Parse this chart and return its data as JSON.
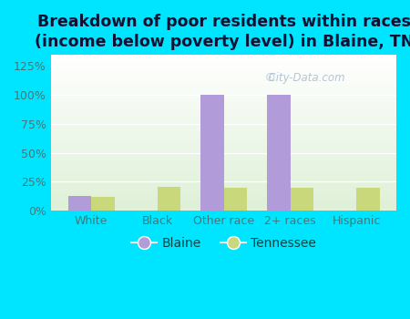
{
  "title": "Breakdown of poor residents within races\n(income below poverty level) in Blaine, TN",
  "categories": [
    "White",
    "Black",
    "Other race",
    "2+ races",
    "Hispanic"
  ],
  "blaine_values": [
    13,
    0,
    100,
    100,
    0
  ],
  "tennessee_values": [
    12,
    21,
    20,
    20,
    20
  ],
  "blaine_color": "#b19cd9",
  "tennessee_color": "#c8d87a",
  "ylim": [
    0,
    135
  ],
  "yticks": [
    0,
    25,
    50,
    75,
    100,
    125
  ],
  "ytick_labels": [
    "0%",
    "25%",
    "50%",
    "75%",
    "100%",
    "125%"
  ],
  "bg_outer": "#00e5ff",
  "bar_width": 0.35,
  "title_fontsize": 12.5,
  "legend_fontsize": 10,
  "tick_fontsize": 9,
  "watermark": "City-Data.com"
}
